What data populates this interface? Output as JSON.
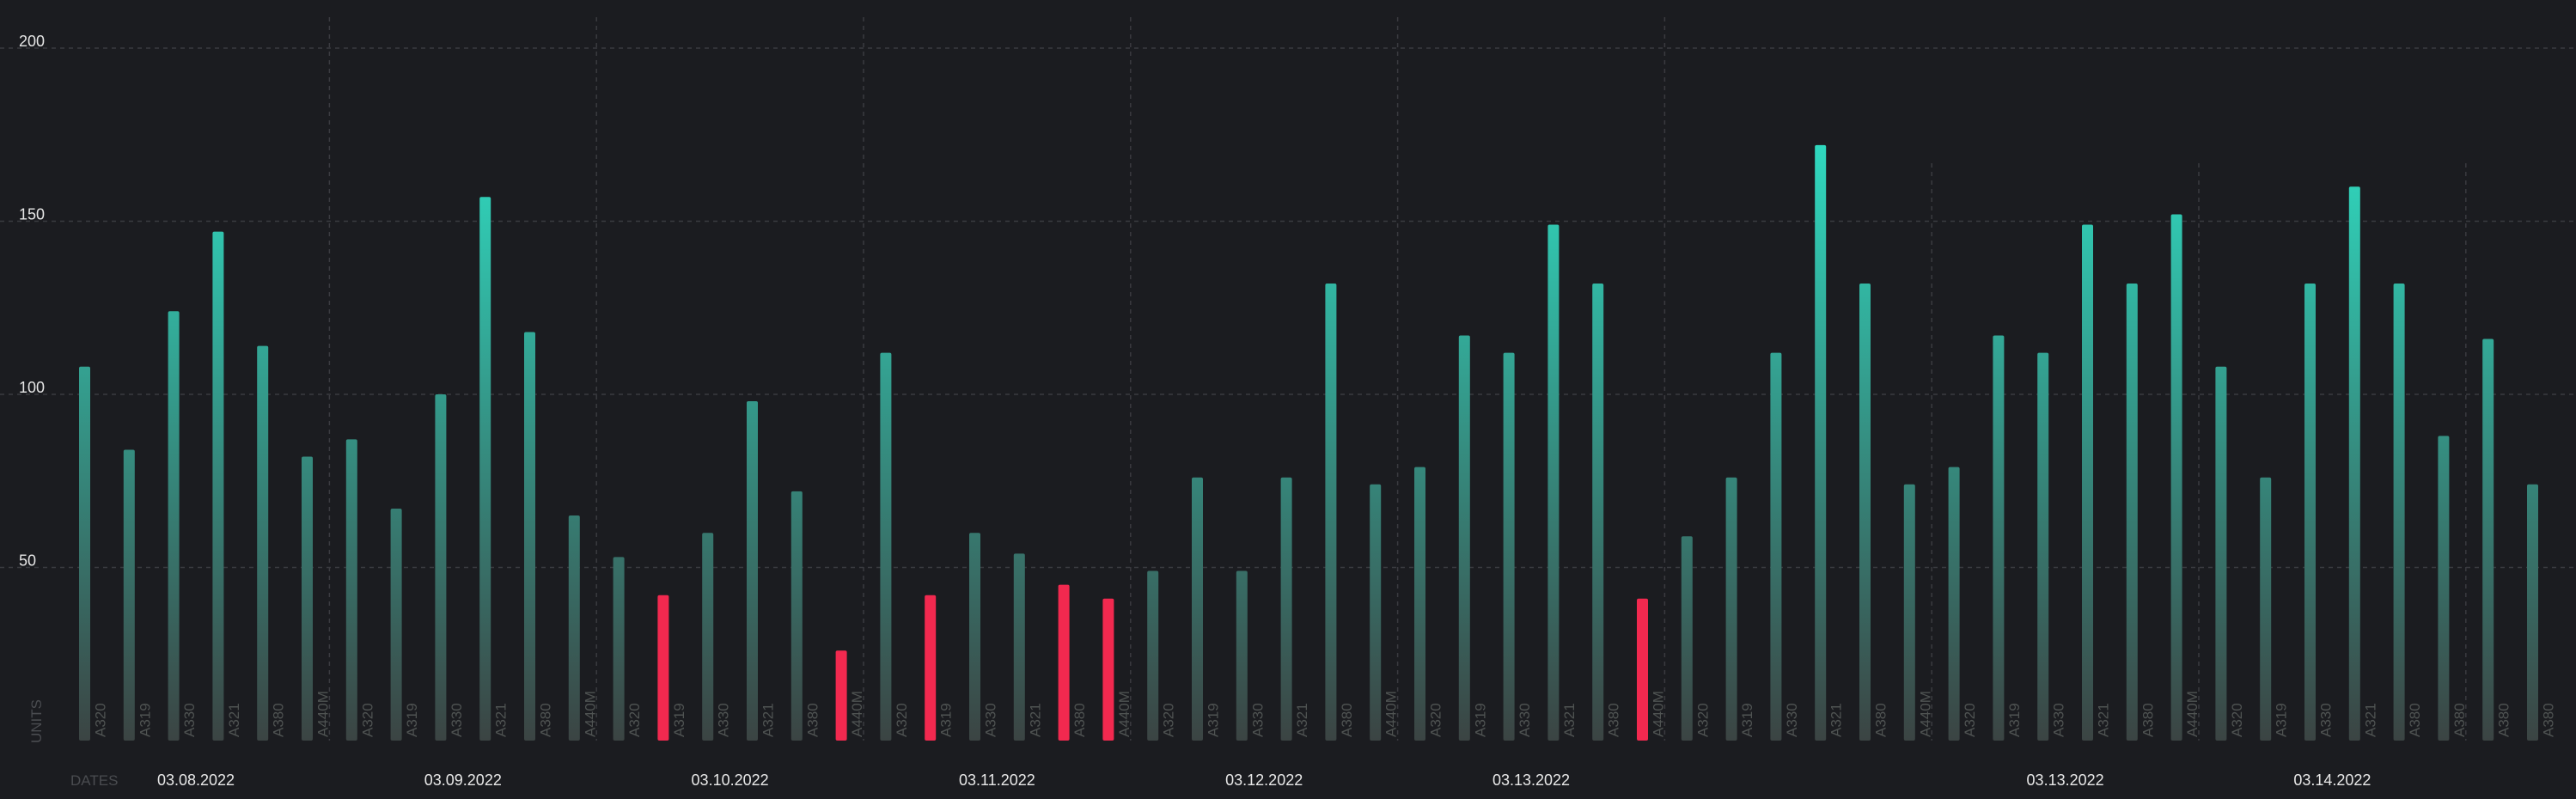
{
  "chart_data": {
    "type": "bar",
    "title": "",
    "ylabel": "UNITS",
    "xlabel": "DATES",
    "ylim": [
      0,
      210
    ],
    "y_ticks": [
      50,
      100,
      150,
      200
    ],
    "grid": true,
    "groups": [
      {
        "date": "03.08.2022",
        "bars": [
          {
            "label": "A320",
            "value": 108
          },
          {
            "label": "A319",
            "value": 84
          },
          {
            "label": "A330",
            "value": 124
          },
          {
            "label": "A321",
            "value": 147
          },
          {
            "label": "A380",
            "value": 114
          },
          {
            "label": "A440M",
            "value": 82
          }
        ]
      },
      {
        "date": "03.09.2022",
        "bars": [
          {
            "label": "A320",
            "value": 87
          },
          {
            "label": "A319",
            "value": 67
          },
          {
            "label": "A330",
            "value": 100
          },
          {
            "label": "A321",
            "value": 157
          },
          {
            "label": "A380",
            "value": 118
          },
          {
            "label": "A440M",
            "value": 65
          }
        ]
      },
      {
        "date": "03.10.2022",
        "bars": [
          {
            "label": "A320",
            "value": 53
          },
          {
            "label": "A319",
            "value": 42,
            "negative": true
          },
          {
            "label": "A330",
            "value": 60
          },
          {
            "label": "A321",
            "value": 98
          },
          {
            "label": "A380",
            "value": 72
          },
          {
            "label": "A440M",
            "value": 26,
            "negative": true
          }
        ]
      },
      {
        "date": "03.11.2022",
        "bars": [
          {
            "label": "A320",
            "value": 112
          },
          {
            "label": "A319",
            "value": 42,
            "negative": true
          },
          {
            "label": "A330",
            "value": 60
          },
          {
            "label": "A321",
            "value": 54
          },
          {
            "label": "A380",
            "value": 45,
            "negative": true
          },
          {
            "label": "A440M",
            "value": 41,
            "negative": true
          }
        ]
      },
      {
        "date": "03.12.2022",
        "bars": [
          {
            "label": "A320",
            "value": 49
          },
          {
            "label": "A319",
            "value": 76
          },
          {
            "label": "A330",
            "value": 49
          },
          {
            "label": "A321",
            "value": 76
          },
          {
            "label": "A380",
            "value": 132
          },
          {
            "label": "A440M",
            "value": 74
          }
        ]
      },
      {
        "date": "03.13.2022",
        "bars": [
          {
            "label": "A320",
            "value": 79
          },
          {
            "label": "A319",
            "value": 117
          },
          {
            "label": "A330",
            "value": 112
          },
          {
            "label": "A321",
            "value": 149
          },
          {
            "label": "A380",
            "value": 132
          },
          {
            "label": "A440M",
            "value": 41,
            "negative": true
          }
        ]
      },
      {
        "date": "",
        "bars": [
          {
            "label": "A320",
            "value": 59
          },
          {
            "label": "A319",
            "value": 76
          },
          {
            "label": "A330",
            "value": 112
          },
          {
            "label": "A321",
            "value": 172
          },
          {
            "label": "A380",
            "value": 132
          },
          {
            "label": "A440M",
            "value": 74
          }
        ]
      },
      {
        "date": "03.13.2022",
        "bars": [
          {
            "label": "A320",
            "value": 79
          },
          {
            "label": "A319",
            "value": 117
          },
          {
            "label": "A330",
            "value": 112
          },
          {
            "label": "A321",
            "value": 149
          },
          {
            "label": "A380",
            "value": 132
          },
          {
            "label": "A440M",
            "value": 152
          }
        ]
      },
      {
        "date": "03.14.2022",
        "bars": [
          {
            "label": "A320",
            "value": 108
          },
          {
            "label": "A319",
            "value": 76
          },
          {
            "label": "A330",
            "value": 132
          },
          {
            "label": "A321",
            "value": 160
          },
          {
            "label": "A380",
            "value": 132
          },
          {
            "label": "A380",
            "value": 88
          }
        ]
      },
      {
        "date": "",
        "bars": [
          {
            "label": "A380",
            "value": 116
          },
          {
            "label": "A380",
            "value": 74
          }
        ]
      }
    ]
  },
  "colors": {
    "background": "#1b1c20",
    "grid": "#3a3b40",
    "bar_top": "#2ee8cc",
    "bar_bottom": "#3b4443",
    "negative": "#f2294f",
    "tick_text": "#e6e6e6",
    "bar_label": "#4f5352",
    "axis_title": "#4a4c50",
    "date_text": "#e8e8e8"
  }
}
